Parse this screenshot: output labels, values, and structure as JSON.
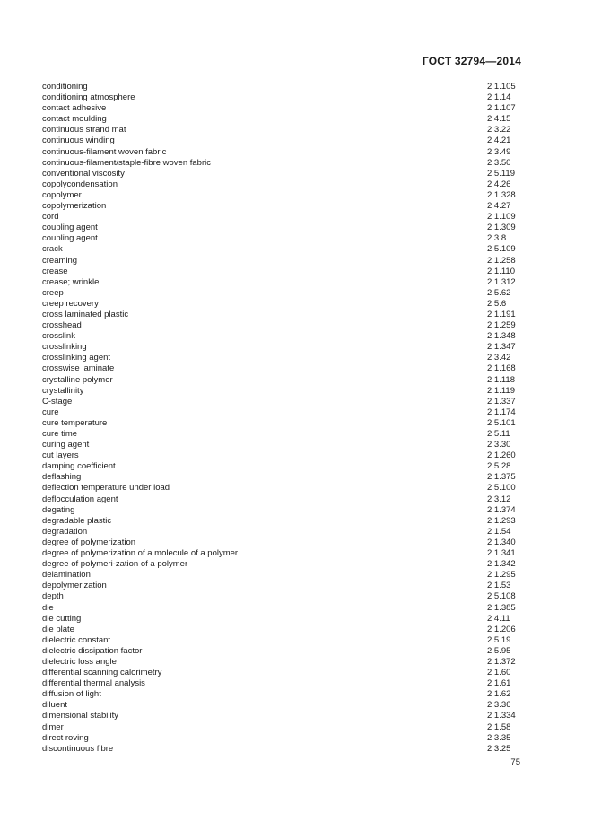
{
  "page": {
    "header": "ГОСТ 32794—2014",
    "page_number": "75"
  },
  "index": {
    "entries": [
      {
        "term": "conditioning",
        "ref": "2.1.105"
      },
      {
        "term": "conditioning atmosphere",
        "ref": "2.1.14"
      },
      {
        "term": "contact adhesive",
        "ref": "2.1.107"
      },
      {
        "term": "contact moulding",
        "ref": "2.4.15"
      },
      {
        "term": "continuous strand mat",
        "ref": "2.3.22"
      },
      {
        "term": "continuous winding",
        "ref": "2.4.21"
      },
      {
        "term": "continuous-filament woven fabric",
        "ref": "2.3.49"
      },
      {
        "term": "continuous-filament/staple-fibre woven fabric",
        "ref": "2.3.50"
      },
      {
        "term": "conventional viscosity",
        "ref": "2.5.119"
      },
      {
        "term": "copolycondensation",
        "ref": "2.4.26"
      },
      {
        "term": "copolymer",
        "ref": "2.1.328"
      },
      {
        "term": "copolymerization",
        "ref": "2.4.27"
      },
      {
        "term": "cord",
        "ref": "2.1.109"
      },
      {
        "term": "coupling agent",
        "ref": "2.1.309"
      },
      {
        "term": "coupling agent",
        "ref": "2.3.8"
      },
      {
        "term": "crack",
        "ref": "2.5.109"
      },
      {
        "term": "creaming",
        "ref": "2.1.258"
      },
      {
        "term": "crease",
        "ref": "2.1.110"
      },
      {
        "term": "crease; wrinkle",
        "ref": "2.1.312"
      },
      {
        "term": "creep",
        "ref": "2.5.62"
      },
      {
        "term": "creep recovery",
        "ref": "2.5.6"
      },
      {
        "term": "cross laminated plastic",
        "ref": "2.1.191"
      },
      {
        "term": "crosshead",
        "ref": "2.1.259"
      },
      {
        "term": "crosslink",
        "ref": "2.1.348"
      },
      {
        "term": "crosslinking",
        "ref": "2.1.347"
      },
      {
        "term": "crosslinking agent",
        "ref": "2.3.42"
      },
      {
        "term": "crosswise laminate",
        "ref": "2.1.168"
      },
      {
        "term": "crystalline polymer",
        "ref": "2.1.118"
      },
      {
        "term": "crystallinity",
        "ref": "2.1.119"
      },
      {
        "term": "C-stage",
        "ref": "2.1.337"
      },
      {
        "term": "cure",
        "ref": "2.1.174"
      },
      {
        "term": "cure temperature",
        "ref": "2.5.101"
      },
      {
        "term": "cure time",
        "ref": "2.5.11"
      },
      {
        "term": "curing agent",
        "ref": "2.3.30"
      },
      {
        "term": "cut layers",
        "ref": "2.1.260"
      },
      {
        "term": "damping coefficient",
        "ref": "2.5.28"
      },
      {
        "term": "deflashing",
        "ref": "2.1.375"
      },
      {
        "term": "deflection temperature under load",
        "ref": "2.5.100"
      },
      {
        "term": "deflocculation agent",
        "ref": "2.3.12"
      },
      {
        "term": "degating",
        "ref": "2.1.374"
      },
      {
        "term": "degradable plastic",
        "ref": "2.1.293"
      },
      {
        "term": "degradation",
        "ref": "2.1.54"
      },
      {
        "term": "degree of polymerization",
        "ref": "2.1.340"
      },
      {
        "term": "degree of polymerization of a molecule of a polymer",
        "ref": "2.1.341"
      },
      {
        "term": "degree of polymeri-zation of a polymer",
        "ref": "2.1.342"
      },
      {
        "term": "delamination",
        "ref": "2.1.295"
      },
      {
        "term": "depolymerization",
        "ref": "2.1.53"
      },
      {
        "term": "depth",
        "ref": "2.5.108"
      },
      {
        "term": "die",
        "ref": "2.1.385"
      },
      {
        "term": "die cutting",
        "ref": "2.4.11"
      },
      {
        "term": "die plate",
        "ref": "2.1.206"
      },
      {
        "term": "dielectric constant",
        "ref": "2.5.19"
      },
      {
        "term": "dielectric dissipation factor",
        "ref": "2.5.95"
      },
      {
        "term": "dielectric loss angle",
        "ref": "2.1.372"
      },
      {
        "term": "differential scanning calorimetry",
        "ref": "2.1.60"
      },
      {
        "term": "differential thermal analysis",
        "ref": "2.1.61"
      },
      {
        "term": "diffusion of light",
        "ref": "2.1.62"
      },
      {
        "term": "diluent",
        "ref": "2.3.36"
      },
      {
        "term": "dimensional stability",
        "ref": "2.1.334"
      },
      {
        "term": "dimer",
        "ref": "2.1.58"
      },
      {
        "term": "direct roving",
        "ref": "2.3.35"
      },
      {
        "term": "discontinuous fibre",
        "ref": "2.3.25"
      }
    ]
  }
}
